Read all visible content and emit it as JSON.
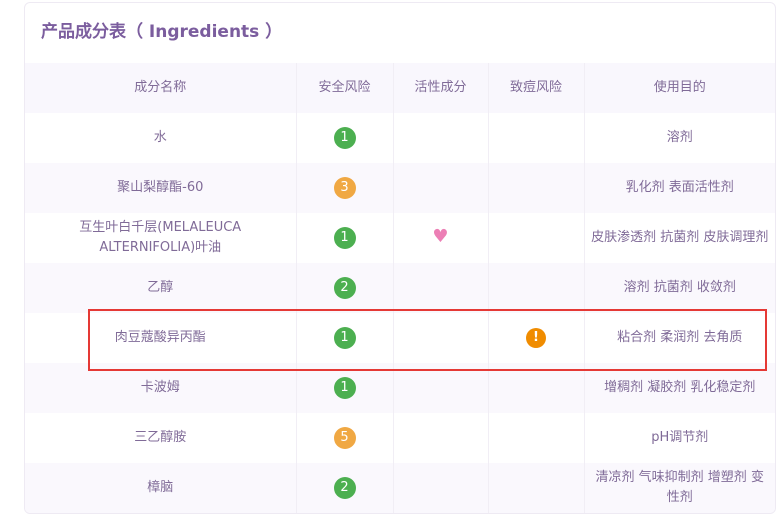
{
  "title": "产品成分表（ Ingredients ）",
  "colors": {
    "safe": "#4caf50",
    "moderate": "#f0a843",
    "acne": "#f08c00",
    "active": "#ec7fb5",
    "highlight": "#e53935"
  },
  "headers": [
    "成分名称",
    "安全风险",
    "活性成分",
    "致痘风险",
    "使用目的"
  ],
  "rows": [
    {
      "name": "水",
      "risk": "1",
      "level": "safe",
      "active": false,
      "acne": false,
      "usage": "溶剂"
    },
    {
      "name": "聚山梨醇酯-60",
      "risk": "3",
      "level": "moderate",
      "active": false,
      "acne": false,
      "usage": "乳化剂 表面活性剂"
    },
    {
      "name": "互生叶白千层(MELALEUCA ALTERNIFOLIA)叶油",
      "risk": "1",
      "level": "safe",
      "active": true,
      "acne": false,
      "usage": "皮肤渗透剂 抗菌剂 皮肤调理剂"
    },
    {
      "name": "乙醇",
      "risk": "2",
      "level": "safe",
      "active": false,
      "acne": false,
      "usage": "溶剂 抗菌剂 收敛剂"
    },
    {
      "name": "肉豆蔻酸异丙酯",
      "risk": "1",
      "level": "safe",
      "active": false,
      "acne": true,
      "usage": "粘合剂 柔润剂 去角质",
      "highlighted": true
    },
    {
      "name": "卡波姆",
      "risk": "1",
      "level": "safe",
      "active": false,
      "acne": false,
      "usage": "增稠剂 凝胶剂 乳化稳定剂"
    },
    {
      "name": "三乙醇胺",
      "risk": "5",
      "level": "moderate",
      "active": false,
      "acne": false,
      "usage": "pH调节剂"
    },
    {
      "name": "樟脑",
      "risk": "2",
      "level": "safe",
      "active": false,
      "acne": false,
      "usage": "清凉剂 气味抑制剂 增塑剂 变性剂"
    }
  ]
}
